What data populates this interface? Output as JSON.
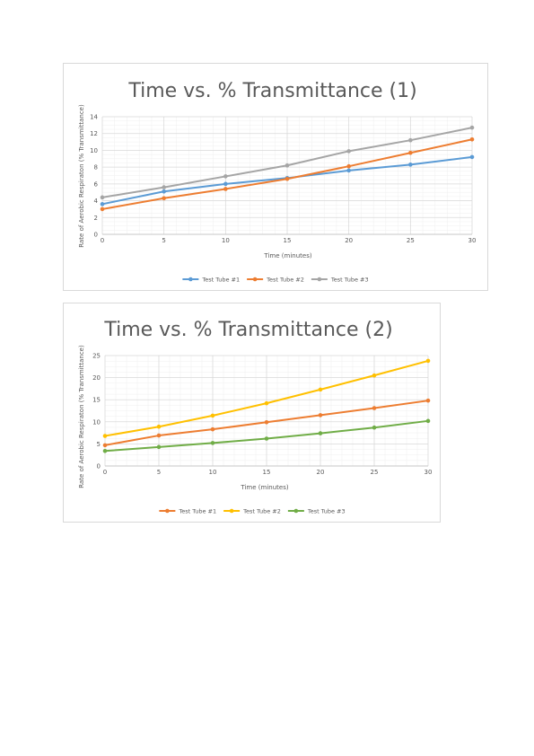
{
  "chart_data": [
    {
      "type": "line",
      "title": "Time vs. % Transmittance (1)",
      "xlabel": "Time (minutes)",
      "ylabel": "Rate of Aerobic Respiraton (% Transmittance)",
      "x": [
        0,
        5,
        10,
        15,
        20,
        25,
        30
      ],
      "xticks": [
        "0",
        "5",
        "10",
        "15",
        "20",
        "25",
        "30"
      ],
      "xlim": [
        0,
        30
      ],
      "ylim": [
        0,
        14
      ],
      "yticks": [
        "0",
        "2",
        "4",
        "6",
        "8",
        "10",
        "12",
        "14"
      ],
      "ytick_values": [
        0,
        2,
        4,
        6,
        8,
        10,
        12,
        14
      ],
      "grid": true,
      "legend": "bottom",
      "series": [
        {
          "name": "Test Tube #1",
          "color": "#5b9bd5",
          "values": [
            3.6,
            5.1,
            6.0,
            6.7,
            7.6,
            8.3,
            9.2
          ]
        },
        {
          "name": "Test Tube #2",
          "color": "#ed7d31",
          "values": [
            3.0,
            4.3,
            5.4,
            6.6,
            8.1,
            9.7,
            11.3
          ]
        },
        {
          "name": "Test Tube #3",
          "color": "#a5a5a5",
          "values": [
            4.4,
            5.6,
            6.9,
            8.2,
            9.9,
            11.2,
            12.7
          ]
        }
      ]
    },
    {
      "type": "line",
      "title": "Time vs. % Transmittance (2)",
      "xlabel": "Time (minutes)",
      "ylabel": "Rate of Aerobic Respiraton (% Transmittance)",
      "x": [
        0,
        5,
        10,
        15,
        20,
        25,
        30
      ],
      "xticks": [
        "0",
        "5",
        "10",
        "15",
        "20",
        "25",
        "30"
      ],
      "xlim": [
        0,
        30
      ],
      "ylim": [
        0,
        25
      ],
      "yticks": [
        "0",
        "5",
        "10",
        "15",
        "20",
        "25"
      ],
      "ytick_values": [
        0,
        5,
        10,
        15,
        20,
        25
      ],
      "grid": true,
      "legend": "bottom",
      "series": [
        {
          "name": "Test Tube #1",
          "color": "#ed7d31",
          "values": [
            4.7,
            6.9,
            8.3,
            9.9,
            11.5,
            13.1,
            14.8
          ]
        },
        {
          "name": "Test Tube #2",
          "color": "#ffc000",
          "values": [
            6.8,
            8.9,
            11.4,
            14.2,
            17.3,
            20.5,
            23.8
          ]
        },
        {
          "name": "Test Tube #3",
          "color": "#70ad47",
          "values": [
            3.4,
            4.3,
            5.2,
            6.2,
            7.4,
            8.7,
            10.2
          ]
        }
      ]
    }
  ]
}
